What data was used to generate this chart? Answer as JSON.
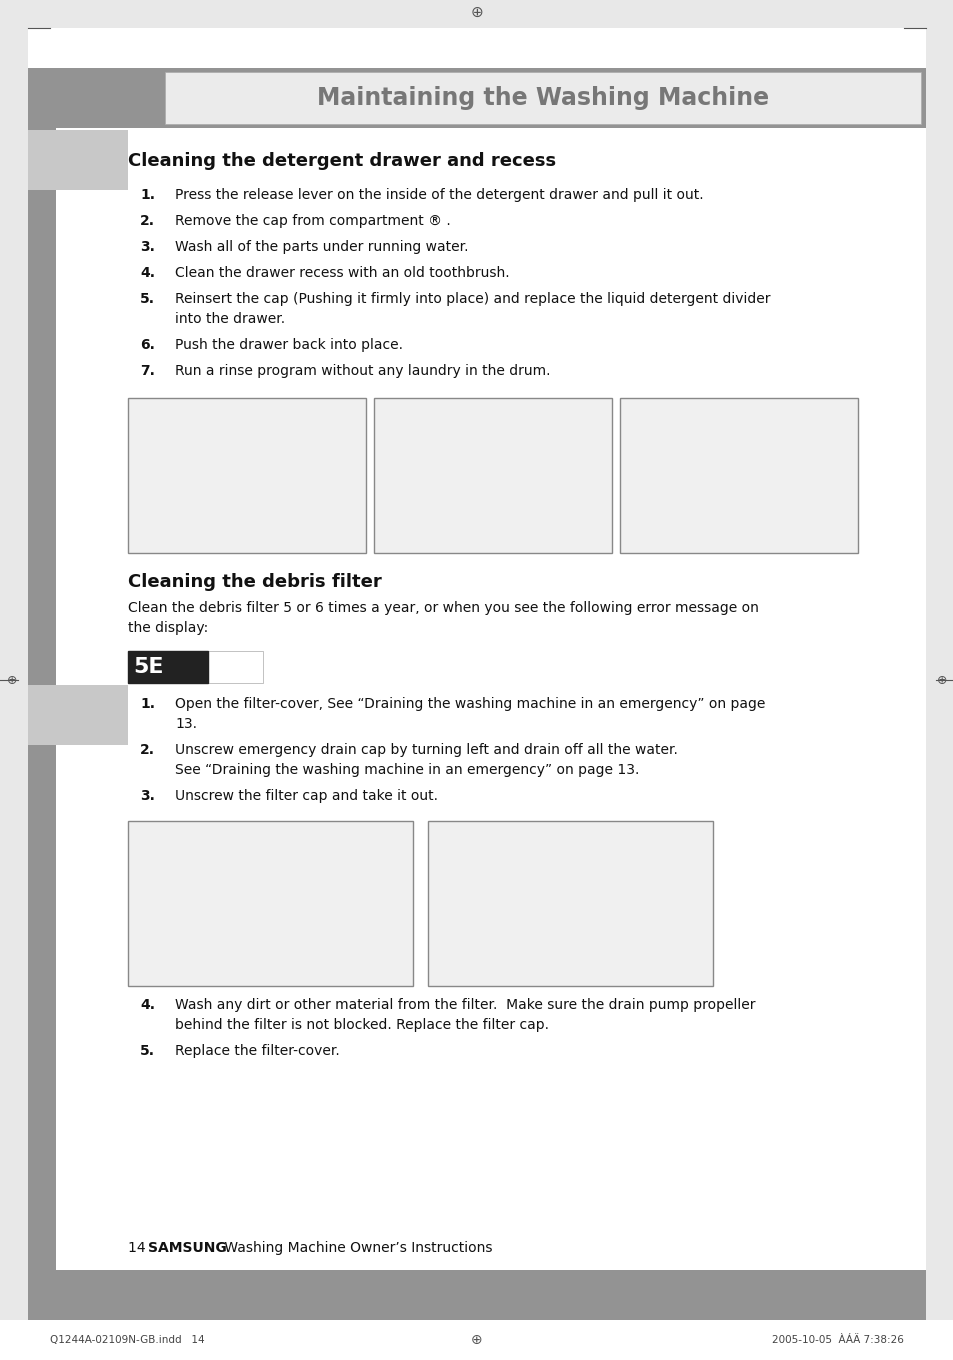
{
  "page_bg": "#e8e8e8",
  "content_bg": "#ffffff",
  "header_bg": "#939393",
  "header_text": "Maintaining the Washing Machine",
  "left_dark_bg": "#939393",
  "left_light_bg": "#c8c8c8",
  "section1_title": "Cleaning the detergent drawer and recess",
  "section1_items": [
    {
      "num": "1.",
      "text": "Press the release lever on the inside of the detergent drawer and pull it out."
    },
    {
      "num": "2.",
      "text": "Remove the cap from compartment ® ."
    },
    {
      "num": "3.",
      "text": "Wash all of the parts under running water."
    },
    {
      "num": "4.",
      "text": "Clean the drawer recess with an old toothbrush."
    },
    {
      "num": "5.",
      "text": "Reinsert the cap (Pushing it firmly into place) and replace the liquid detergent divider\ninto the drawer."
    },
    {
      "num": "6.",
      "text": "Push the drawer back into place."
    },
    {
      "num": "7.",
      "text": "Run a rinse program without any laundry in the drum."
    }
  ],
  "section2_title": "Cleaning the debris filter",
  "section2_intro": "Clean the debris filter 5 or 6 times a year, or when you see the following error message on\nthe display:",
  "error_display": "5E",
  "section2_items": [
    {
      "num": "1.",
      "text": "Open the filter-cover, See “Draining the washing machine in an emergency” on page\n13."
    },
    {
      "num": "2.",
      "text": "Unscrew emergency drain cap by turning left and drain off all the water.\nSee “Draining the washing machine in an emergency” on page 13."
    },
    {
      "num": "3.",
      "text": "Unscrew the filter cap and take it out."
    },
    {
      "num": "4.",
      "text": "Wash any dirt or other material from the filter.  Make sure the drain pump propeller\nbehind the filter is not blocked. Replace the filter cap."
    },
    {
      "num": "5.",
      "text": "Replace the filter-cover."
    }
  ],
  "footer_page": "14",
  "footer_brand": "SAMSUNG",
  "footer_text": " Washing Machine Owner’s Instructions",
  "bottom_left": "Q1244A-02109N-GB.indd   14",
  "bottom_right": "2005-10-05  ÀÁÄ 7:38:26",
  "img_border": "#888888",
  "img_fill": "#f0f0f0"
}
